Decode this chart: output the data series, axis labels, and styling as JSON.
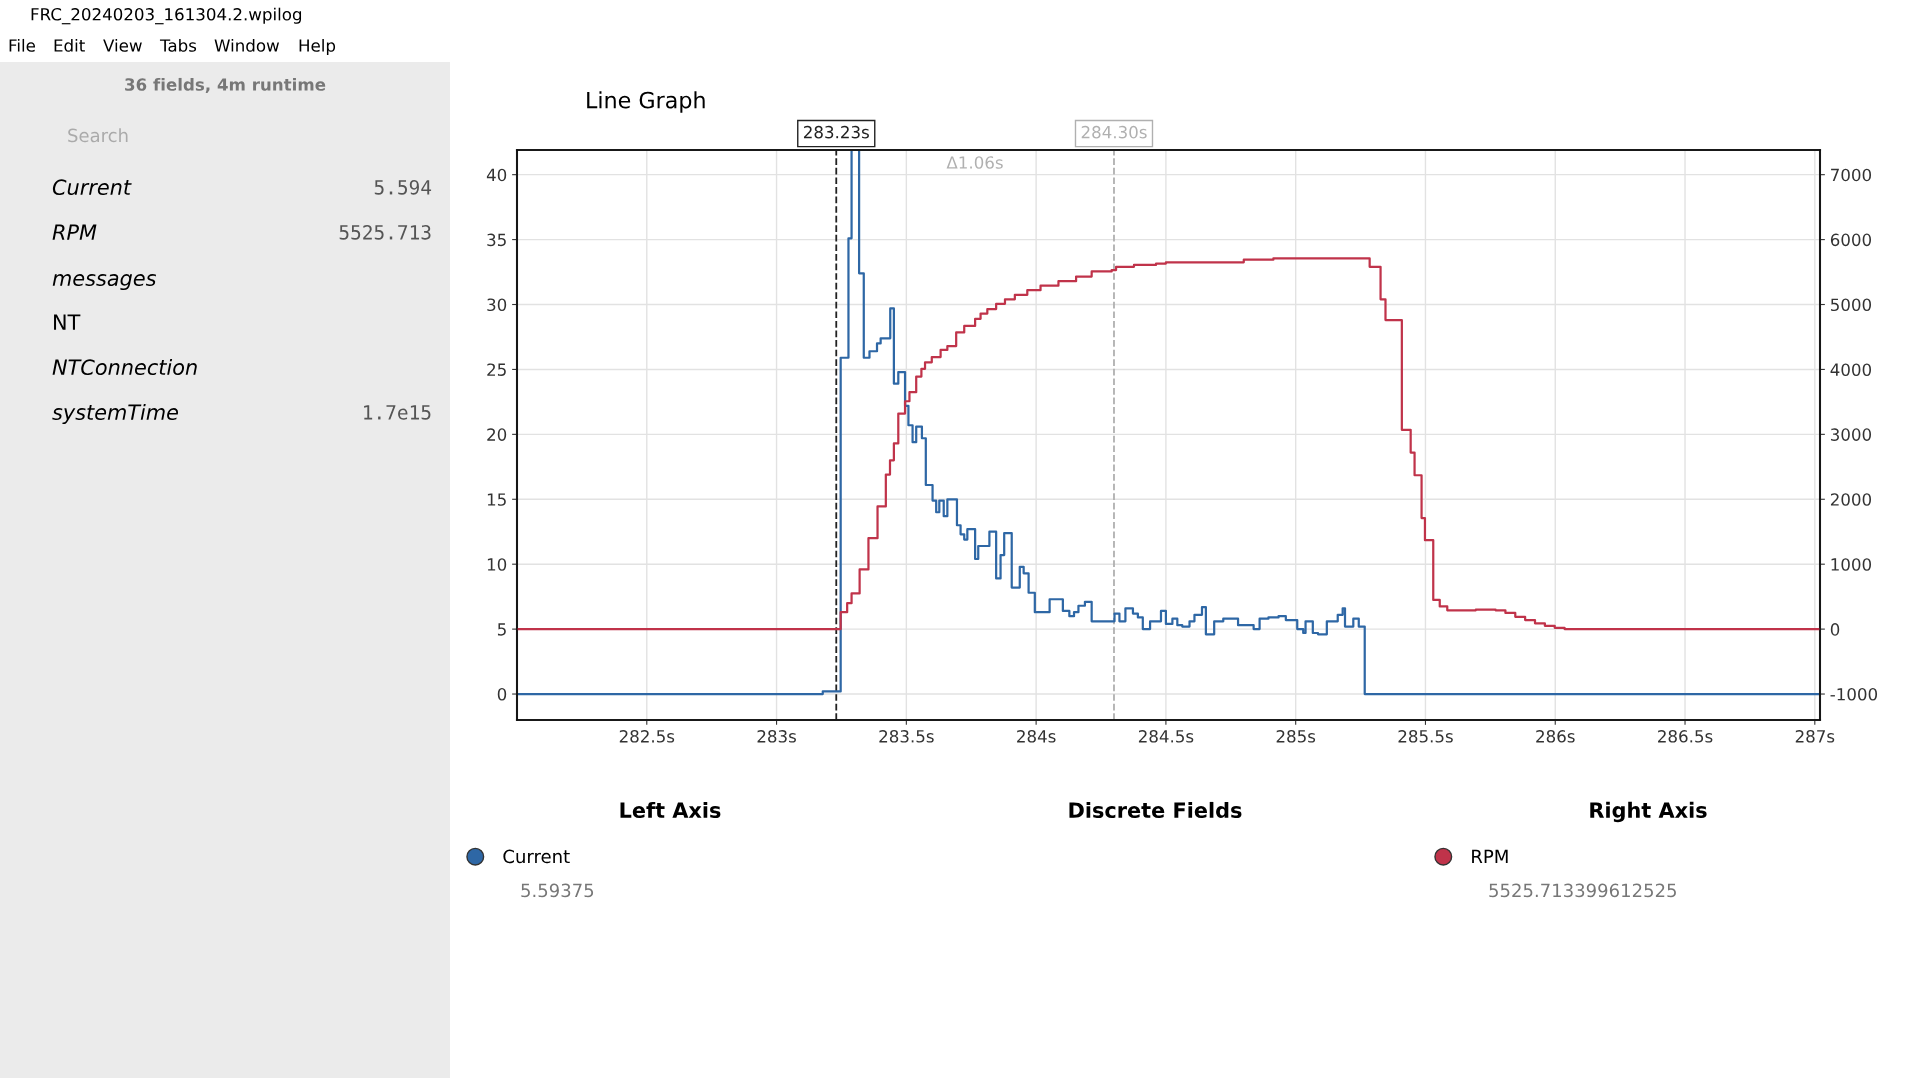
{
  "chart_data": {
    "type": "step",
    "xlim": [
      282.0,
      287.02
    ],
    "xticks": [
      {
        "value": 282.5,
        "label": "282.5s"
      },
      {
        "value": 283,
        "label": "283s"
      },
      {
        "value": 283.5,
        "label": "283.5s"
      },
      {
        "value": 284,
        "label": "284s"
      },
      {
        "value": 284.5,
        "label": "284.5s"
      },
      {
        "value": 285,
        "label": "285s"
      },
      {
        "value": 285.5,
        "label": "285.5s"
      },
      {
        "value": 286,
        "label": "286s"
      },
      {
        "value": 286.5,
        "label": "286.5s"
      },
      {
        "value": 287,
        "label": "287s"
      }
    ],
    "ylim": [
      -2,
      41.9
    ],
    "yticks": [
      0,
      5,
      10,
      15,
      20,
      25,
      30,
      35,
      40
    ],
    "y2lim": [
      -1400,
      7380
    ],
    "y2ticks": [
      -1000,
      0,
      1000,
      2000,
      3000,
      4000,
      5000,
      6000,
      7000
    ],
    "grid": true,
    "legend": "bottom",
    "marker": "none",
    "line_style": "solid",
    "series": [
      {
        "name": "Current",
        "color": "#2e67a5",
        "axis": "y",
        "x": [
          282.0,
          283.178,
          283.247,
          283.277,
          283.289,
          283.318,
          283.336,
          283.358,
          283.387,
          283.401,
          283.438,
          283.452,
          283.469,
          283.495,
          283.508,
          283.524,
          283.538,
          283.56,
          283.575,
          283.601,
          283.615,
          283.627,
          283.644,
          283.658,
          283.695,
          283.709,
          283.723,
          283.735,
          283.765,
          283.777,
          283.82,
          283.846,
          283.863,
          283.877,
          283.906,
          283.937,
          283.952,
          283.971,
          283.995,
          284.052,
          284.103,
          284.128,
          284.146,
          284.163,
          284.188,
          284.214,
          284.291,
          284.302,
          284.321,
          284.344,
          284.373,
          284.392,
          284.411,
          284.439,
          284.481,
          284.5,
          284.525,
          284.544,
          284.563,
          284.591,
          284.61,
          284.639,
          284.654,
          284.686,
          284.721,
          284.778,
          284.838,
          284.861,
          284.895,
          284.934,
          284.962,
          285.006,
          285.029,
          285.038,
          285.066,
          285.086,
          285.12,
          285.162,
          285.181,
          285.19,
          285.222,
          285.243,
          285.266,
          287.02
        ],
        "values": [
          0,
          0.2,
          25.9,
          35.1,
          41.9,
          32.4,
          25.9,
          26.4,
          27.0,
          27.4,
          29.7,
          23.9,
          24.8,
          22.2,
          20.7,
          19.4,
          20.6,
          19.7,
          16.1,
          14.9,
          14.0,
          14.9,
          13.7,
          15.0,
          13.0,
          12.3,
          11.9,
          12.7,
          10.4,
          11.4,
          12.5,
          8.9,
          10.7,
          12.4,
          8.2,
          9.8,
          9.3,
          7.8,
          6.3,
          7.3,
          6.4,
          6.0,
          6.3,
          6.8,
          7.1,
          5.6,
          5.6,
          6.2,
          5.6,
          6.6,
          6.2,
          5.9,
          5.0,
          5.6,
          6.4,
          5.4,
          5.8,
          5.3,
          5.2,
          5.6,
          6.1,
          6.7,
          4.6,
          5.6,
          5.8,
          5.3,
          5.0,
          5.8,
          5.9,
          6.0,
          5.7,
          5.0,
          4.7,
          5.6,
          4.7,
          4.6,
          5.6,
          6.1,
          6.6,
          5.2,
          5.8,
          5.2,
          0,
          0
        ]
      },
      {
        "name": "RPM",
        "color": "#c0334a",
        "axis": "y2",
        "x": [
          282.0,
          283.247,
          283.272,
          283.289,
          283.32,
          283.354,
          283.389,
          283.421,
          283.437,
          283.452,
          283.469,
          283.495,
          283.512,
          283.538,
          283.558,
          283.572,
          283.598,
          283.632,
          283.658,
          283.692,
          283.723,
          283.765,
          283.786,
          283.812,
          283.846,
          283.88,
          283.918,
          283.966,
          284.017,
          284.086,
          284.154,
          284.214,
          284.291,
          284.308,
          284.377,
          284.462,
          284.5,
          284.8,
          284.914,
          285.285,
          285.327,
          285.346,
          285.409,
          285.443,
          285.458,
          285.485,
          285.498,
          285.53,
          285.555,
          285.584,
          285.694,
          285.77,
          285.808,
          285.846,
          285.884,
          285.922,
          285.96,
          285.998,
          286.036,
          287.02
        ],
        "values": [
          0,
          260,
          400,
          550,
          920,
          1400,
          1890,
          2380,
          2600,
          2860,
          3320,
          3510,
          3650,
          3890,
          4010,
          4110,
          4190,
          4300,
          4360,
          4570,
          4670,
          4780,
          4860,
          4930,
          5010,
          5080,
          5150,
          5220,
          5290,
          5360,
          5430,
          5510,
          5530,
          5580,
          5610,
          5630,
          5650,
          5690,
          5710,
          5580,
          5080,
          4760,
          3070,
          2720,
          2370,
          1710,
          1370,
          450,
          350,
          290,
          300,
          290,
          250,
          190,
          140,
          90,
          50,
          20,
          0,
          0
        ]
      }
    ],
    "ref_lines": [
      {
        "axis": "x",
        "value": 283.23,
        "label": "283.23s",
        "color": "#222222",
        "line_style": "dashed"
      },
      {
        "axis": "x",
        "value": 284.3,
        "label": "284.30s",
        "color": "#b0b0b0",
        "line_style": "dashed"
      }
    ],
    "annotations": [
      "FRC_20240203_161304.2.wpilog",
      "File",
      "Edit",
      "View",
      "Tabs",
      "Window",
      "Help",
      "36 fields, 4m runtime",
      "Search",
      "Current",
      "5.594",
      "RPM",
      "5525.713",
      "messages",
      "NT",
      "NTConnection",
      "systemTime",
      "1.7e15",
      "Line Graph",
      "Δ1.06s",
      "Left Axis",
      "Discrete Fields",
      "Right Axis",
      "5.59375",
      "5525.713399612525"
    ]
  }
}
